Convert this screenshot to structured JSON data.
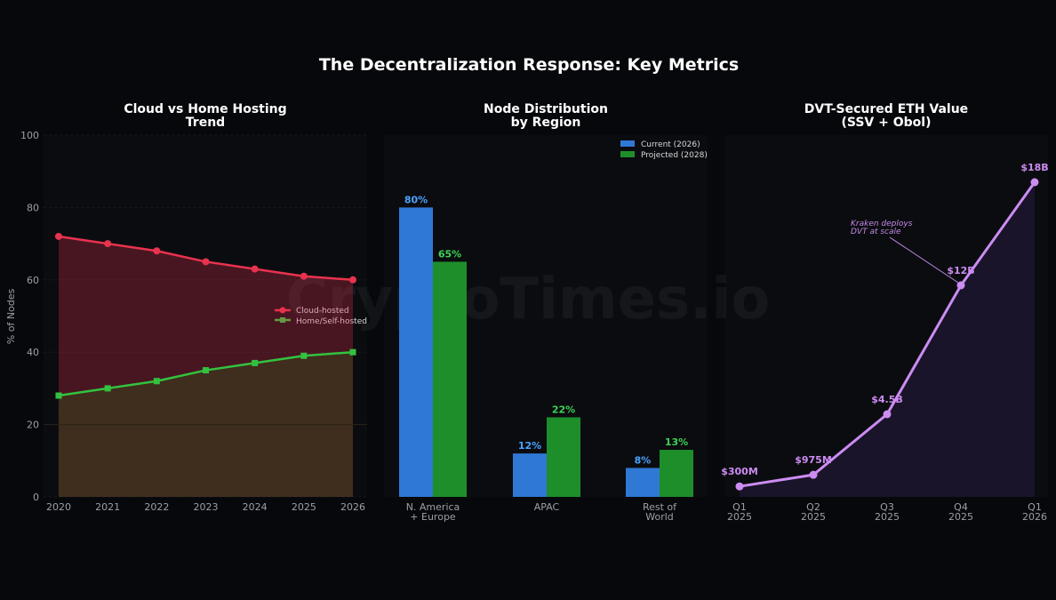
{
  "main_title": "The Decentralization Response: Key Metrics",
  "watermark": "CryptoTimes.io",
  "colors": {
    "background": "#07080b",
    "panel": "#0b0c10",
    "cloud": "#e8334e",
    "home": "#33c23f",
    "current": "#2f78d4",
    "projected": "#1e8e2b",
    "current_label": "#4aa3ff",
    "projected_label": "#3dd353",
    "dvt": "#cc8cf2"
  },
  "chart_data": [
    {
      "id": "hosting",
      "type": "line",
      "title": [
        "Cloud vs Home Hosting",
        "Trend"
      ],
      "ylabel": "% of Nodes",
      "ylim": [
        0,
        100
      ],
      "yticks": [
        0,
        20,
        40,
        60,
        80,
        100
      ],
      "x": [
        "2020",
        "2021",
        "2022",
        "2023",
        "2024",
        "2025",
        "2026"
      ],
      "series": [
        {
          "name": "Cloud-hosted",
          "values": [
            72,
            70,
            68,
            65,
            63,
            61,
            60
          ],
          "marker": "circle",
          "color": "#e8334e"
        },
        {
          "name": "Home/Self-hosted",
          "values": [
            28,
            30,
            32,
            35,
            37,
            39,
            40
          ],
          "marker": "square",
          "color": "#33c23f"
        }
      ],
      "legend": "center-right",
      "grid": true
    },
    {
      "id": "region",
      "type": "bar",
      "title": [
        "Node Distribution",
        "by Region"
      ],
      "categories": [
        [
          "N. America",
          "+ Europe"
        ],
        [
          "APAC"
        ],
        [
          "Rest of",
          "World"
        ]
      ],
      "ylim": [
        0,
        100
      ],
      "series": [
        {
          "name": "Current (2026)",
          "values": [
            80,
            12,
            8
          ],
          "labels": [
            "80%",
            "12%",
            "8%"
          ],
          "color": "#2f78d4",
          "label_color": "#4aa3ff"
        },
        {
          "name": "Projected (2028)",
          "values": [
            65,
            22,
            13
          ],
          "labels": [
            "65%",
            "22%",
            "13%"
          ],
          "color": "#1e8e2b",
          "label_color": "#3dd353"
        }
      ],
      "legend": "top-right"
    },
    {
      "id": "dvt",
      "type": "area",
      "title": [
        "DVT-Secured ETH Value",
        "(SSV + Obol)"
      ],
      "x": [
        [
          "Q1",
          "2025"
        ],
        [
          "Q2",
          "2025"
        ],
        [
          "Q3",
          "2025"
        ],
        [
          "Q4",
          "2025"
        ],
        [
          "Q1",
          "2026"
        ]
      ],
      "values": [
        0.3,
        0.975,
        4.5,
        12,
        18
      ],
      "units": "billion USD",
      "labels": [
        "$300M",
        "$975M",
        "$4.5B",
        "$12B",
        "$18B"
      ],
      "annotation": {
        "text": [
          "Kraken deploys",
          "DVT at scale"
        ],
        "point_index": 3
      }
    }
  ]
}
